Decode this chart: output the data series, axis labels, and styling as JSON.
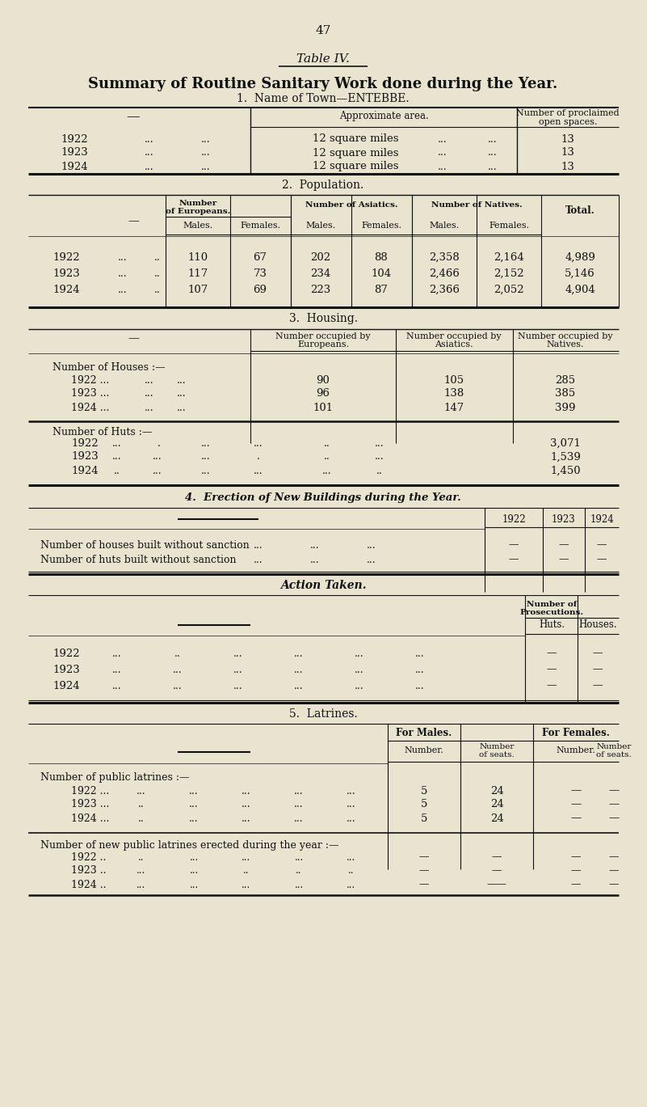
{
  "page_number": "47",
  "table_title": "Table IV.",
  "main_title": "Summary of Routine Sanitary Work done during the Year.",
  "section1_title": "1.  Name of Town—ENTEBBE.",
  "section2_title": "2.  Population.",
  "section3_title": "3.  Housing.",
  "section4_title": "4.  Erection of New Buildings during the Year.",
  "action_title": "Action Taken.",
  "section5_title": "5.  Latrines.",
  "bg_color": "#e8e4d0",
  "text_color": "#111111",
  "line_color": "#111111"
}
